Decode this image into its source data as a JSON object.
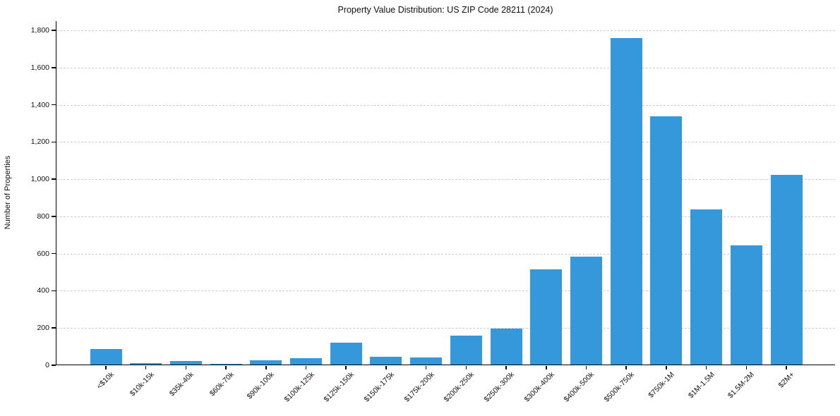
{
  "chart_data": {
    "type": "bar",
    "title": "Property Value Distribution: US ZIP Code 28211 (2024)",
    "xlabel": "",
    "ylabel": "Number of Properties",
    "categories": [
      "<$10k",
      "$10k-15k",
      "$35k-40k",
      "$60k-70k",
      "$90k-100k",
      "$100k-125k",
      "$125k-150k",
      "$150k-175k",
      "$175k-200k",
      "$200k-250k",
      "$250k-300k",
      "$300k-400k",
      "$400k-500k",
      "$500k-750k",
      "$750k-1M",
      "$1M-1.5M",
      "$1.5M-2M",
      "$2M+"
    ],
    "values": [
      85,
      8,
      20,
      5,
      22,
      35,
      118,
      42,
      38,
      155,
      192,
      510,
      580,
      1755,
      1335,
      835,
      640,
      1020
    ],
    "ylim": [
      0,
      1850
    ],
    "yticks": [
      0,
      200,
      400,
      600,
      800,
      1000,
      1200,
      1400,
      1600,
      1800
    ],
    "grid": "horizontal-dashed",
    "legend_position": "none",
    "bar_color": "#3498db",
    "grid_color": "#cccccc",
    "axis_color": "#000000",
    "text_color": "#111111"
  }
}
